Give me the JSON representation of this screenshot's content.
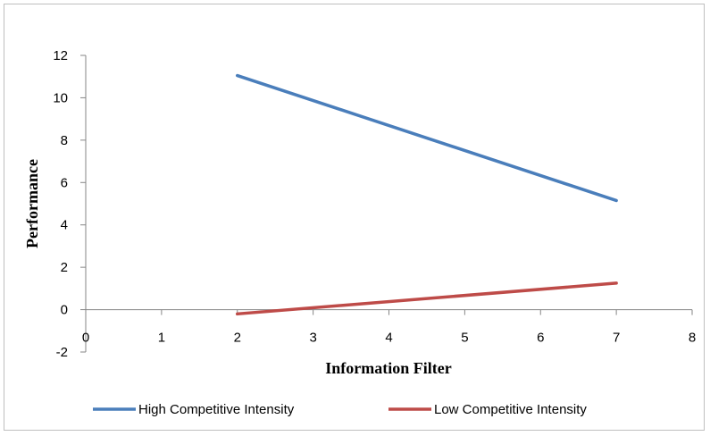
{
  "chart_data": {
    "type": "line",
    "title": "",
    "xlabel": "Information Filter",
    "ylabel": "Performance",
    "xlim": [
      0,
      8
    ],
    "ylim": [
      -2,
      12
    ],
    "x_ticks": [
      0,
      1,
      2,
      3,
      4,
      5,
      6,
      7,
      8
    ],
    "y_ticks": [
      -2,
      0,
      2,
      4,
      6,
      8,
      10,
      12
    ],
    "grid": false,
    "legend_position": "bottom",
    "series": [
      {
        "name": "High Competitive Intensity",
        "color": "#4a7ebb",
        "x": [
          2,
          7
        ],
        "y": [
          11.05,
          5.15
        ]
      },
      {
        "name": "Low Competitive Intensity",
        "color": "#be4b48",
        "x": [
          2,
          7
        ],
        "y": [
          -0.2,
          1.25
        ]
      }
    ]
  }
}
